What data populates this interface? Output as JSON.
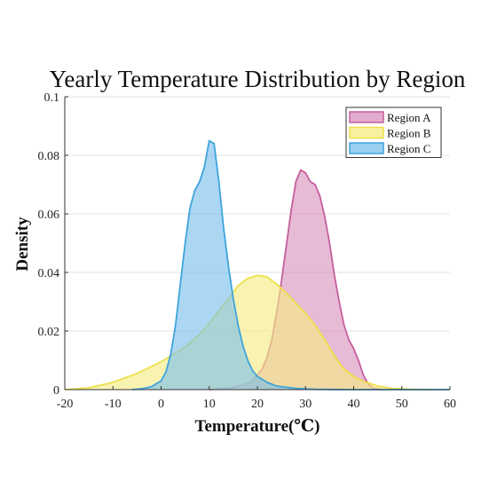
{
  "chart_data": {
    "type": "area",
    "title": "Yearly Temperature Distribution by Region",
    "xlabel": "Temperature(℃)",
    "ylabel": "Density",
    "xlim": [
      -20,
      60
    ],
    "ylim": [
      0,
      0.1
    ],
    "xticks": [
      "-20",
      "-10",
      "0",
      "10",
      "20",
      "30",
      "40",
      "50",
      "60"
    ],
    "yticks": [
      "0",
      "0.02",
      "0.04",
      "0.06",
      "0.08",
      "0.1"
    ],
    "grid": "horizontal",
    "legend_position": "top-right",
    "series": [
      {
        "name": "Region A",
        "stroke": "#c55f9c",
        "fill": "#d98fbd",
        "x": [
          10,
          14,
          17,
          19,
          21,
          22,
          23,
          24,
          25,
          26,
          27,
          28,
          29,
          30,
          31,
          32,
          33,
          34,
          35,
          36,
          37,
          38,
          39,
          40,
          41,
          42,
          43,
          44,
          46
        ],
        "y": [
          0,
          0.0005,
          0.0015,
          0.003,
          0.007,
          0.011,
          0.017,
          0.026,
          0.037,
          0.049,
          0.061,
          0.071,
          0.075,
          0.074,
          0.071,
          0.07,
          0.066,
          0.059,
          0.05,
          0.039,
          0.03,
          0.022,
          0.017,
          0.014,
          0.01,
          0.005,
          0.002,
          0.0005,
          0
        ]
      },
      {
        "name": "Region B",
        "stroke": "#ede04a",
        "fill": "#f6ec82",
        "x": [
          -20,
          -15,
          -10,
          -5,
          0,
          5,
          8,
          10,
          12,
          14,
          16,
          18,
          20,
          22,
          24,
          26,
          28,
          30,
          32,
          34,
          36,
          38,
          40,
          42,
          45,
          48,
          52,
          56
        ],
        "y": [
          0,
          0.0006,
          0.0025,
          0.0055,
          0.0095,
          0.0145,
          0.019,
          0.0225,
          0.027,
          0.031,
          0.0355,
          0.038,
          0.039,
          0.0385,
          0.036,
          0.033,
          0.0295,
          0.026,
          0.022,
          0.017,
          0.0115,
          0.007,
          0.0045,
          0.0028,
          0.0012,
          0.0004,
          0.0001,
          0
        ]
      },
      {
        "name": "Region C",
        "stroke": "#3ea4dc",
        "fill": "#79bfeb",
        "x": [
          -6,
          -4,
          -2,
          0,
          1,
          2,
          3,
          4,
          5,
          6,
          7,
          8,
          9,
          10,
          11,
          12,
          13,
          14,
          15,
          16,
          17,
          18,
          19,
          20,
          22,
          24,
          28,
          32,
          38,
          46,
          54,
          60
        ],
        "y": [
          0,
          0.0003,
          0.001,
          0.003,
          0.006,
          0.012,
          0.022,
          0.036,
          0.05,
          0.062,
          0.068,
          0.071,
          0.076,
          0.085,
          0.084,
          0.071,
          0.055,
          0.042,
          0.031,
          0.022,
          0.015,
          0.01,
          0.0065,
          0.0045,
          0.0025,
          0.0012,
          0.0004,
          0.0001,
          0,
          0,
          0,
          0
        ]
      }
    ]
  }
}
